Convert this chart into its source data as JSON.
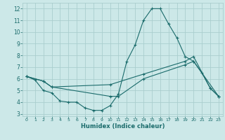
{
  "xlabel": "Humidex (Indice chaleur)",
  "xlim": [
    -0.5,
    23.5
  ],
  "ylim": [
    2.8,
    12.5
  ],
  "yticks": [
    3,
    4,
    5,
    6,
    7,
    8,
    9,
    10,
    11,
    12
  ],
  "xticks": [
    0,
    1,
    2,
    3,
    4,
    5,
    6,
    7,
    8,
    9,
    10,
    11,
    12,
    13,
    14,
    15,
    16,
    17,
    18,
    19,
    20,
    21,
    22,
    23
  ],
  "bg_color": "#cce8e8",
  "grid_color": "#aacece",
  "line_color": "#1a6b6b",
  "line1_x": [
    0,
    1,
    2,
    3,
    4,
    5,
    6,
    7,
    8,
    9,
    10,
    11,
    12,
    13,
    14,
    15,
    16,
    17,
    18,
    19,
    20,
    21,
    22,
    23
  ],
  "line1_y": [
    6.2,
    5.9,
    5.0,
    4.8,
    4.1,
    4.0,
    4.0,
    3.5,
    3.3,
    3.3,
    3.7,
    4.7,
    7.5,
    8.9,
    11.0,
    12.0,
    12.0,
    10.7,
    9.5,
    7.9,
    7.5,
    6.5,
    5.2,
    4.5
  ],
  "line2_x": [
    0,
    2,
    3,
    10,
    14,
    19,
    20,
    22,
    23
  ],
  "line2_y": [
    6.2,
    5.8,
    5.3,
    5.5,
    6.4,
    7.5,
    7.9,
    5.2,
    4.5
  ],
  "line3_x": [
    0,
    2,
    3,
    10,
    11,
    14,
    19,
    20,
    23
  ],
  "line3_y": [
    6.2,
    5.8,
    5.3,
    4.5,
    4.5,
    6.0,
    7.2,
    7.5,
    4.5
  ]
}
